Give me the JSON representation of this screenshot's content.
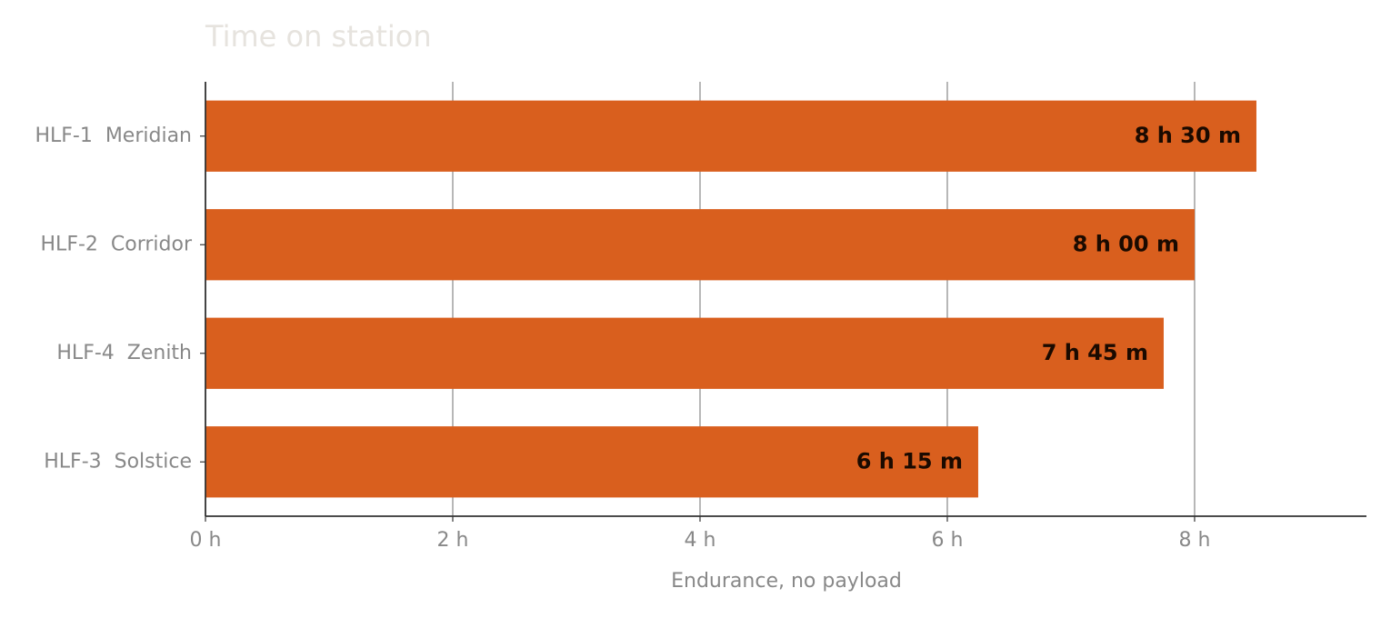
{
  "chart_data": {
    "type": "barh",
    "title": "Time on station",
    "xlabel": "Endurance, no payload",
    "categories": [
      "HLF-1  Meridian",
      "HLF-2  Corridor",
      "HLF-4  Zenith",
      "HLF-3  Solstice"
    ],
    "values": [
      8.5,
      8.0,
      7.75,
      6.25
    ],
    "value_labels": [
      "8 h 30 m",
      "8 h 00 m",
      "7 h 45 m",
      "6 h 15 m"
    ],
    "color": "#d95f1e",
    "xlim": [
      0,
      9.39
    ],
    "xticks": [
      {
        "value": 0,
        "label": "0 h"
      },
      {
        "value": 2,
        "label": "2 h"
      },
      {
        "value": 4,
        "label": "4 h"
      },
      {
        "value": 6,
        "label": "6 h"
      },
      {
        "value": 8,
        "label": "8 h"
      }
    ],
    "grid": true
  }
}
